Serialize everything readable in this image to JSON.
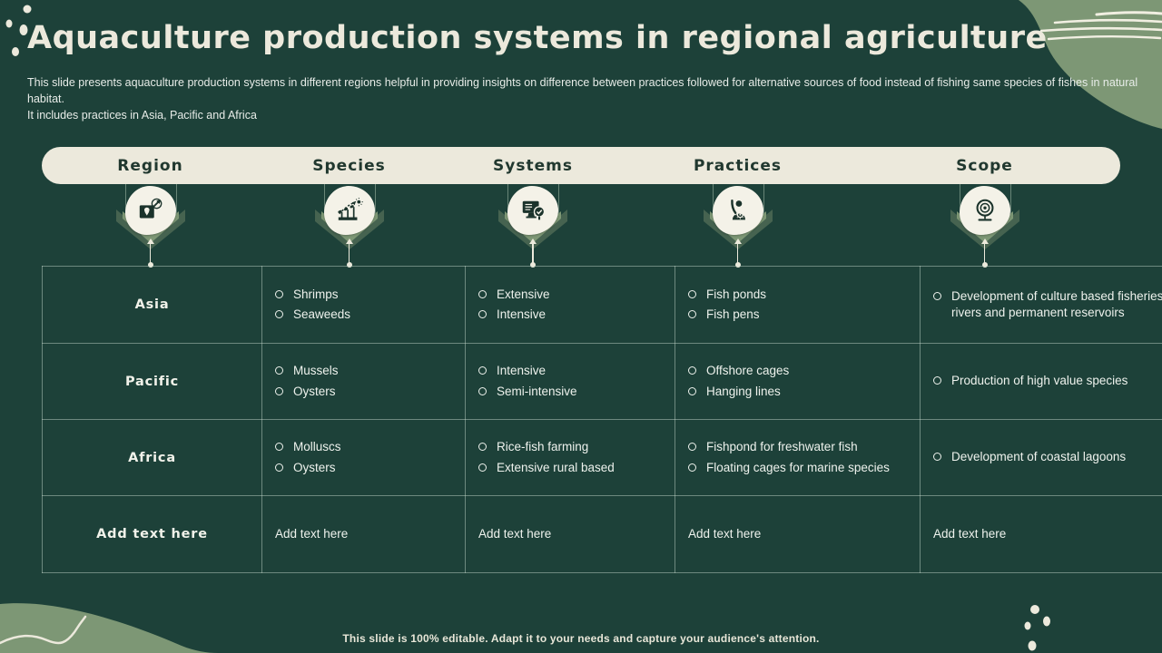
{
  "slide": {
    "title": "Aquaculture production systems in regional agriculture",
    "subtitle_line1": "This slide presents aquaculture production systems in different regions helpful in providing insights on difference between practices followed for alternative sources of food instead of fishing same species of fishes in natural habitat.",
    "subtitle_line2": "It includes practices in Asia, Pacific and Africa",
    "footer": "This slide is 100% editable. Adapt it to your needs and capture your audience's attention."
  },
  "colors": {
    "background": "#1d4139",
    "cream": "#ece9dc",
    "sage": "#7d9775",
    "chevron_dark": "#466350",
    "icon_ink": "#1b332b",
    "text_light": "#eef2ed"
  },
  "table": {
    "columns": [
      {
        "label": "Region",
        "icon": "map-location-icon"
      },
      {
        "label": "Species",
        "icon": "growth-sprouts-icon"
      },
      {
        "label": "Systems",
        "icon": "monitor-checklist-icon"
      },
      {
        "label": "Practices",
        "icon": "person-gear-icon"
      },
      {
        "label": "Scope",
        "icon": "target-scope-icon"
      }
    ],
    "rows": [
      {
        "region": "Asia",
        "placeholder": false,
        "cells": [
          {
            "column": "Species",
            "bulleted": true,
            "items": [
              "Shrimps",
              "Seaweeds"
            ]
          },
          {
            "column": "Systems",
            "bulleted": true,
            "items": [
              "Extensive",
              "Intensive"
            ]
          },
          {
            "column": "Practices",
            "bulleted": true,
            "items": [
              "Fish ponds",
              "Fish pens"
            ]
          },
          {
            "column": "Scope",
            "bulleted": true,
            "items": [
              "Development of culture based fisheries in rivers and permanent reservoirs"
            ]
          }
        ]
      },
      {
        "region": "Pacific",
        "placeholder": false,
        "cells": [
          {
            "column": "Species",
            "bulleted": true,
            "items": [
              "Mussels",
              "Oysters"
            ]
          },
          {
            "column": "Systems",
            "bulleted": true,
            "items": [
              "Intensive",
              "Semi-intensive"
            ]
          },
          {
            "column": "Practices",
            "bulleted": true,
            "items": [
              "Offshore cages",
              "Hanging lines"
            ]
          },
          {
            "column": "Scope",
            "bulleted": true,
            "items": [
              "Production of high value species"
            ]
          }
        ]
      },
      {
        "region": "Africa",
        "placeholder": false,
        "cells": [
          {
            "column": "Species",
            "bulleted": true,
            "items": [
              "Molluscs",
              "Oysters"
            ]
          },
          {
            "column": "Systems",
            "bulleted": true,
            "items": [
              "Rice-fish farming",
              "Extensive rural based"
            ]
          },
          {
            "column": "Practices",
            "bulleted": true,
            "items": [
              "Fishpond for freshwater fish",
              "Floating cages for marine species"
            ]
          },
          {
            "column": "Scope",
            "bulleted": true,
            "items": [
              "Development of coastal lagoons"
            ]
          }
        ]
      },
      {
        "region": "Add text here",
        "placeholder": true,
        "cells": [
          {
            "column": "Species",
            "bulleted": false,
            "items": [
              "Add text here"
            ]
          },
          {
            "column": "Systems",
            "bulleted": false,
            "items": [
              "Add text here"
            ]
          },
          {
            "column": "Practices",
            "bulleted": false,
            "items": [
              "Add text here"
            ]
          },
          {
            "column": "Scope",
            "bulleted": false,
            "items": [
              "Add text here"
            ]
          }
        ]
      }
    ]
  }
}
